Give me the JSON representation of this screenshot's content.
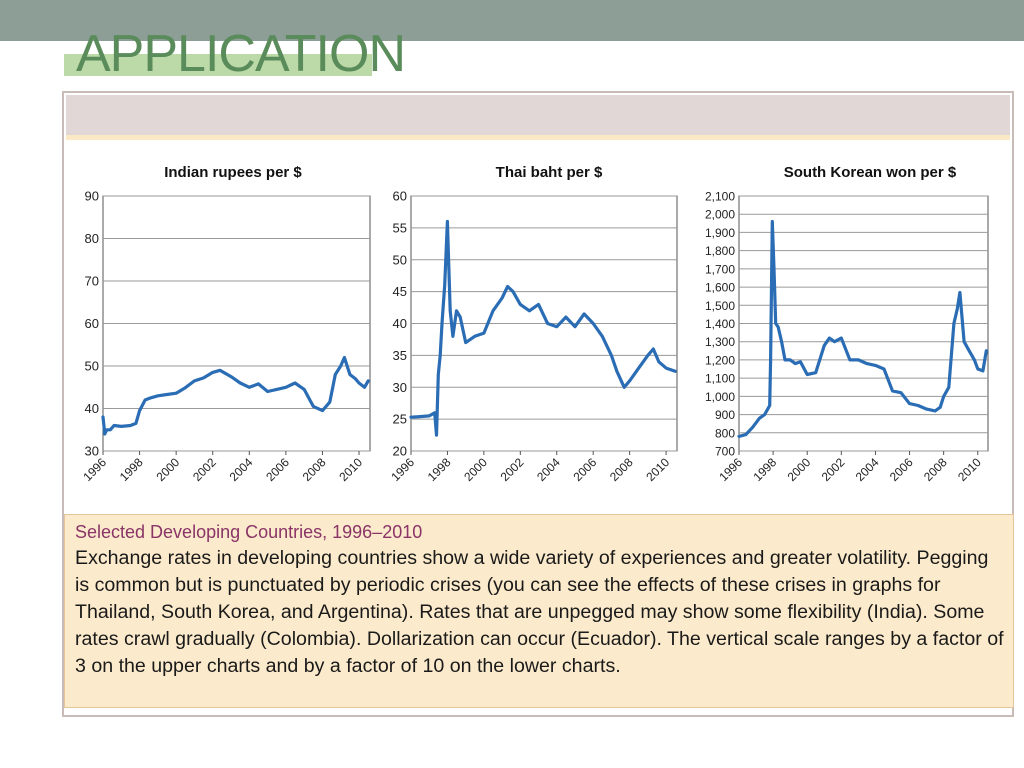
{
  "slide": {
    "title": "APPLICATION"
  },
  "caption": {
    "title": "Selected Developing Countries, 1996–2010",
    "body": "Exchange rates in developing countries show a wide variety of experiences and greater volatility. Pegging is common but is punctuated by periodic crises (you can see the effects of these crises in graphs for Thailand, South Korea, and Argentina). Rates that are unpegged may show some flexibility (India). Some rates crawl gradually (Colombia). Dollarization can occur (Ecuador). The vertical scale ranges by a factor of 3 on the upper charts and by a factor of 10 on the lower charts."
  },
  "colors": {
    "line": "#2a6db5",
    "title_text": "#5a8b5a",
    "caption_title": "#8a3467",
    "top_bar": "#8c9e96"
  },
  "chart_data": [
    {
      "type": "line",
      "title": "Indian rupees per $",
      "xlim": [
        1996,
        2010.6
      ],
      "ylim": [
        30,
        90
      ],
      "yticks": [
        30,
        40,
        50,
        60,
        70,
        80,
        90
      ],
      "ytick_labels": [
        "30",
        "40",
        "50",
        "60",
        "70",
        "80",
        "90"
      ],
      "xticks": [
        1996,
        1998,
        2000,
        2002,
        2004,
        2006,
        2008,
        2010
      ],
      "xtick_labels": [
        "1996",
        "1998",
        "2000",
        "2002",
        "2004",
        "2006",
        "2008",
        "2010"
      ],
      "grid": true,
      "series": [
        {
          "x": [
            1996.0,
            1996.1,
            1996.2,
            1996.4,
            1996.6,
            1997.0,
            1997.5,
            1997.8,
            1998.0,
            1998.3,
            1998.6,
            1999.0,
            1999.5,
            2000.0,
            2000.5,
            2001.0,
            2001.5,
            2002.0,
            2002.4,
            2003.0,
            2003.5,
            2004.0,
            2004.5,
            2005.0,
            2005.5,
            2006.0,
            2006.5,
            2007.0,
            2007.5,
            2008.0,
            2008.4,
            2008.7,
            2009.0,
            2009.2,
            2009.5,
            2009.8,
            2010.0,
            2010.3,
            2010.5
          ],
          "y": [
            38,
            34,
            35,
            35,
            36,
            35.8,
            36,
            36.5,
            39.5,
            42,
            42.5,
            43,
            43.3,
            43.6,
            44.9,
            46.5,
            47.2,
            48.5,
            49,
            47.5,
            46,
            45,
            45.8,
            44,
            44.5,
            45,
            46,
            44.5,
            40.5,
            39.5,
            41.5,
            48,
            50,
            52,
            48,
            47,
            46,
            45,
            46.5
          ]
        }
      ]
    },
    {
      "type": "line",
      "title": "Thai baht per $",
      "xlim": [
        1996,
        2010.6
      ],
      "ylim": [
        20,
        60
      ],
      "yticks": [
        20,
        25,
        30,
        35,
        40,
        45,
        50,
        55,
        60
      ],
      "ytick_labels": [
        "20",
        "25",
        "30",
        "35",
        "40",
        "45",
        "50",
        "55",
        "60"
      ],
      "xticks": [
        1996,
        1998,
        2000,
        2002,
        2004,
        2006,
        2008,
        2010
      ],
      "xtick_labels": [
        "1996",
        "1998",
        "2000",
        "2002",
        "2004",
        "2006",
        "2008",
        "2010"
      ],
      "grid": true,
      "series": [
        {
          "x": [
            1996.0,
            1996.5,
            1997.0,
            1997.3,
            1997.4,
            1997.5,
            1997.6,
            1997.7,
            1997.85,
            1998.0,
            1998.15,
            1998.3,
            1998.5,
            1998.7,
            1999.0,
            1999.5,
            2000.0,
            2000.5,
            2001.0,
            2001.3,
            2001.6,
            2002.0,
            2002.5,
            2003.0,
            2003.5,
            2004.0,
            2004.5,
            2005.0,
            2005.5,
            2006.0,
            2006.5,
            2007.0,
            2007.3,
            2007.7,
            2008.0,
            2008.5,
            2009.0,
            2009.3,
            2009.6,
            2010.0,
            2010.5
          ],
          "y": [
            25.3,
            25.4,
            25.5,
            26,
            22.5,
            32,
            35,
            40,
            46,
            56,
            42,
            38,
            42,
            41,
            37,
            38,
            38.5,
            42,
            44,
            45.8,
            45,
            43,
            42,
            43,
            40,
            39.5,
            41,
            39.5,
            41.5,
            40,
            38,
            35,
            32.5,
            30,
            31,
            33,
            35,
            36,
            34,
            33,
            32.5
          ]
        }
      ]
    },
    {
      "type": "line",
      "title": "South Korean won  per $",
      "xlim": [
        1996,
        2010.6
      ],
      "ylim": [
        700,
        2100
      ],
      "yticks": [
        700,
        800,
        900,
        1000,
        1100,
        1200,
        1300,
        1400,
        1500,
        1600,
        1700,
        1800,
        1900,
        2000,
        2100
      ],
      "ytick_labels": [
        "700",
        "800",
        "900",
        "1,000",
        "1,100",
        "1,200",
        "1,300",
        "1,400",
        "1,500",
        "1,600",
        "1,700",
        "1,800",
        "1,900",
        "2,000",
        "2,100"
      ],
      "xticks": [
        1996,
        1998,
        2000,
        2002,
        2004,
        2006,
        2008,
        2010
      ],
      "xtick_labels": [
        "1996",
        "1998",
        "2000",
        "2002",
        "2004",
        "2006",
        "2008",
        "2010"
      ],
      "grid": true,
      "series": [
        {
          "x": [
            1996.0,
            1996.4,
            1996.8,
            1997.2,
            1997.5,
            1997.8,
            1997.85,
            1997.95,
            1998.05,
            1998.15,
            1998.3,
            1998.5,
            1998.7,
            1999.0,
            1999.3,
            1999.6,
            2000.0,
            2000.5,
            2001.0,
            2001.3,
            2001.6,
            2002.0,
            2002.5,
            2003.0,
            2003.5,
            2004.0,
            2004.5,
            2005.0,
            2005.5,
            2006.0,
            2006.5,
            2007.0,
            2007.5,
            2007.8,
            2008.0,
            2008.3,
            2008.6,
            2008.8,
            2008.95,
            2009.2,
            2009.5,
            2009.8,
            2010.0,
            2010.3,
            2010.5
          ],
          "y": [
            780,
            790,
            830,
            880,
            900,
            950,
            1200,
            1960,
            1700,
            1400,
            1380,
            1300,
            1200,
            1200,
            1180,
            1190,
            1120,
            1130,
            1280,
            1320,
            1300,
            1320,
            1200,
            1200,
            1180,
            1170,
            1150,
            1030,
            1020,
            960,
            950,
            930,
            920,
            940,
            1000,
            1050,
            1400,
            1480,
            1570,
            1300,
            1250,
            1200,
            1150,
            1140,
            1250
          ]
        }
      ]
    }
  ]
}
